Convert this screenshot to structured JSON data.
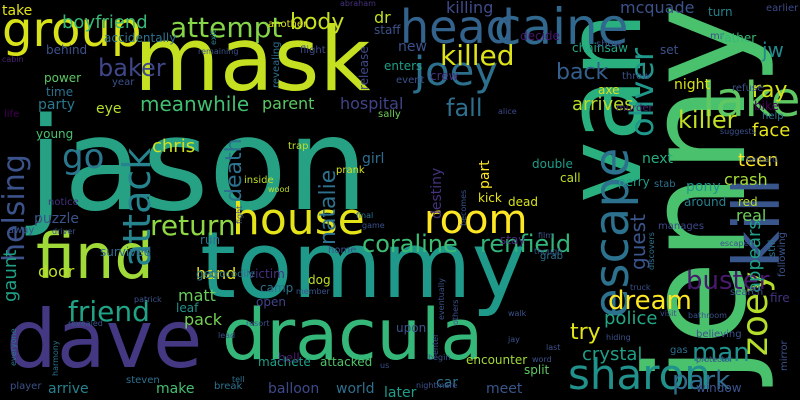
{
  "background": "#000000",
  "words": [
    {
      "text": "jason",
      "color": "#26a184"
    },
    {
      "text": "tommy",
      "color": "#1f9a8a"
    },
    {
      "text": "jenny",
      "color": "#4ac16d"
    },
    {
      "text": "van",
      "color": "#2ab07f"
    },
    {
      "text": "mask",
      "color": "#c5e021"
    },
    {
      "text": "dave",
      "color": "#453882"
    },
    {
      "text": "dracula",
      "color": "#35b779"
    },
    {
      "text": "find",
      "color": "#a0da39"
    },
    {
      "text": "kill",
      "color": "#39568c"
    },
    {
      "text": "group",
      "color": "#d8e219"
    },
    {
      "text": "escape",
      "color": "#2c728e"
    },
    {
      "text": "caine",
      "color": "#31688e"
    },
    {
      "text": "head",
      "color": "#33638d"
    },
    {
      "text": "lake",
      "color": "#5ec962"
    },
    {
      "text": "house",
      "color": "#e5e419"
    },
    {
      "text": "sharon",
      "color": "#21918c"
    },
    {
      "text": "joey",
      "color": "#2d708e"
    },
    {
      "text": "room",
      "color": "#fde725"
    },
    {
      "text": "attack",
      "color": "#25848e"
    },
    {
      "text": "helsing",
      "color": "#3b528b"
    },
    {
      "text": "zoey",
      "color": "#b5de2b"
    },
    {
      "text": "oliver",
      "color": "#1f988b"
    },
    {
      "text": "go",
      "color": "#2a788e"
    },
    {
      "text": "killed",
      "color": "#dde318"
    },
    {
      "text": "attempt",
      "color": "#86d549"
    },
    {
      "text": "return",
      "color": "#8fd744"
    },
    {
      "text": "friend",
      "color": "#20a386"
    },
    {
      "text": "baker",
      "color": "#3f4788"
    },
    {
      "text": "dream",
      "color": "#fde725"
    },
    {
      "text": "park",
      "color": "#2e6e8e"
    },
    {
      "text": "man",
      "color": "#21918c"
    },
    {
      "text": "renfield",
      "color": "#31b57b"
    },
    {
      "text": "coraline",
      "color": "#3dbc74"
    },
    {
      "text": "killer",
      "color": "#c0df25"
    },
    {
      "text": "ray",
      "color": "#d2e21b"
    },
    {
      "text": "jw",
      "color": "#23898e"
    },
    {
      "text": "buster",
      "color": "#481a6c"
    },
    {
      "text": "death",
      "color": "#2c718e"
    },
    {
      "text": "natalie",
      "color": "#2d718e"
    },
    {
      "text": "guest",
      "color": "#3a548c"
    },
    {
      "text": "back",
      "color": "#355f8d"
    },
    {
      "text": "fall",
      "color": "#2e6f8e"
    },
    {
      "text": "meanwhile",
      "color": "#42be71"
    },
    {
      "text": "body",
      "color": "#c8e020"
    },
    {
      "text": "try",
      "color": "#e2e418"
    },
    {
      "text": "gaunt",
      "color": "#1fa187"
    },
    {
      "text": "crystal",
      "color": "#1f9f88"
    },
    {
      "text": "police",
      "color": "#22a785"
    },
    {
      "text": "appears",
      "color": "#1fa088"
    },
    {
      "text": "arrives",
      "color": "#b8de29"
    },
    {
      "text": "boyfriend",
      "color": "#37b878"
    },
    {
      "text": "hospital",
      "color": "#414287"
    },
    {
      "text": "chris",
      "color": "#d0e11c"
    },
    {
      "text": "parent",
      "color": "#5cc863"
    },
    {
      "text": "face",
      "color": "#e5e419"
    },
    {
      "text": "teen",
      "color": "#fde725"
    },
    {
      "text": "crash",
      "color": "#a5db36"
    },
    {
      "text": "pack",
      "color": "#75d054"
    },
    {
      "text": "matt",
      "color": "#69cd5b"
    },
    {
      "text": "hand",
      "color": "#e7e419"
    },
    {
      "text": "door",
      "color": "#bddf26"
    },
    {
      "text": "real",
      "color": "#6ece58"
    },
    {
      "text": "mcquade",
      "color": "#3b528b"
    },
    {
      "text": "killing",
      "color": "#3e4c8a"
    },
    {
      "text": "take",
      "color": "#e5e419"
    },
    {
      "text": "night",
      "color": "#d8e219"
    },
    {
      "text": "next",
      "color": "#27ad81"
    },
    {
      "text": "pony",
      "color": "#1f968b"
    },
    {
      "text": "girl",
      "color": "#2e6d8e"
    },
    {
      "text": "puzzle",
      "color": "#3b528b"
    },
    {
      "text": "party",
      "color": "#2a788e"
    },
    {
      "text": "dr",
      "color": "#c2df23"
    },
    {
      "text": "new",
      "color": "#3b518b"
    },
    {
      "text": "balloon",
      "color": "#3e4989"
    },
    {
      "text": "meet",
      "color": "#39558c"
    },
    {
      "text": "arrive",
      "color": "#26828e"
    },
    {
      "text": "make",
      "color": "#44bf70"
    },
    {
      "text": "later",
      "color": "#1e9c89"
    },
    {
      "text": "world",
      "color": "#2e6f8e"
    },
    {
      "text": "car",
      "color": "#2c738e"
    },
    {
      "text": "part",
      "color": "#fde725"
    },
    {
      "text": "destiny",
      "color": "#46327e"
    },
    {
      "text": "machete",
      "color": "#1fa088"
    },
    {
      "text": "attacked",
      "color": "#50c46a"
    },
    {
      "text": "encounter",
      "color": "#a2da37"
    },
    {
      "text": "split",
      "color": "#5ec962"
    },
    {
      "text": "upon",
      "color": "#3b528b"
    },
    {
      "text": "bike",
      "color": "#440154"
    },
    {
      "text": "fire",
      "color": "#46327e"
    },
    {
      "text": "red",
      "color": "#b8de29"
    },
    {
      "text": "around",
      "color": "#27808e"
    },
    {
      "text": "survived",
      "color": "#2f6c8e"
    },
    {
      "text": "victim",
      "color": "#46307e"
    },
    {
      "text": "camp",
      "color": "#2d718e"
    },
    {
      "text": "get",
      "color": "#2a788e"
    },
    {
      "text": "run",
      "color": "#2d708e"
    },
    {
      "text": "leaf",
      "color": "#21918c"
    },
    {
      "text": "open",
      "color": "#414487"
    },
    {
      "text": "dog",
      "color": "#c2df23"
    },
    {
      "text": "kick",
      "color": "#e5e419"
    },
    {
      "text": "dead",
      "color": "#d8e219"
    },
    {
      "text": "stay",
      "color": "#482878"
    },
    {
      "text": "call",
      "color": "#c2df23"
    },
    {
      "text": "perry",
      "color": "#1f9e89"
    },
    {
      "text": "double",
      "color": "#1f9e89"
    },
    {
      "text": "chainsaw",
      "color": "#22a785"
    },
    {
      "text": "decide",
      "color": "#481769"
    },
    {
      "text": "staff",
      "color": "#3b528b"
    },
    {
      "text": "release",
      "color": "#3e4a89"
    },
    {
      "text": "revealing",
      "color": "#2e6e8e"
    },
    {
      "text": "another",
      "color": "#dde318"
    },
    {
      "text": "flight",
      "color": "#3e4a89"
    },
    {
      "text": "crew",
      "color": "#46327e"
    },
    {
      "text": "enters",
      "color": "#1f9e89"
    },
    {
      "text": "event",
      "color": "#3b528b"
    },
    {
      "text": "hell",
      "color": "#481b6d"
    },
    {
      "text": "murder",
      "color": "#482576"
    },
    {
      "text": "axe",
      "color": "#d8e219"
    },
    {
      "text": "mr",
      "color": "#3b528b"
    },
    {
      "text": "father",
      "color": "#37b878"
    },
    {
      "text": "set",
      "color": "#3b528b"
    },
    {
      "text": "earlier",
      "color": "#3e4989"
    },
    {
      "text": "turn",
      "color": "#26828e"
    },
    {
      "text": "show",
      "color": "#3b528b"
    },
    {
      "text": "accidentally",
      "color": "#2c728e"
    },
    {
      "text": "behind",
      "color": "#3b528b"
    },
    {
      "text": "power",
      "color": "#5cc863"
    },
    {
      "text": "time",
      "color": "#2c728e"
    },
    {
      "text": "young",
      "color": "#4ac16d"
    },
    {
      "text": "life",
      "color": "#440154"
    },
    {
      "text": "year",
      "color": "#3b528b"
    },
    {
      "text": "eye",
      "color": "#b5de2b"
    },
    {
      "text": "cabin",
      "color": "#482475"
    },
    {
      "text": "exit",
      "color": "#26828e"
    },
    {
      "text": "remaining",
      "color": "#3b528b"
    },
    {
      "text": "abraham",
      "color": "#46327e"
    },
    {
      "text": "help",
      "color": "#2c728e"
    },
    {
      "text": "refuse",
      "color": "#3b528b"
    },
    {
      "text": "throw",
      "color": "#3b528b"
    },
    {
      "text": "sally",
      "color": "#6ece58"
    },
    {
      "text": "alice",
      "color": "#3e4989"
    },
    {
      "text": "trap",
      "color": "#bddf26"
    },
    {
      "text": "prank",
      "color": "#d8e219"
    },
    {
      "text": "inside",
      "color": "#c2df23"
    },
    {
      "text": "wood",
      "color": "#bddf26"
    },
    {
      "text": "suggests",
      "color": "#3b528b"
    },
    {
      "text": "bernard",
      "color": "#3b528b"
    },
    {
      "text": "stab",
      "color": "#2c728e"
    },
    {
      "text": "manages",
      "color": "#3e4989"
    },
    {
      "text": "discovers",
      "color": "#2c728e"
    },
    {
      "text": "escaped",
      "color": "#3b528b"
    },
    {
      "text": "still",
      "color": "#2c728e"
    },
    {
      "text": "following",
      "color": "#3b528b"
    },
    {
      "text": "search",
      "color": "#3b528b"
    },
    {
      "text": "truck",
      "color": "#3b528b"
    },
    {
      "text": "visit",
      "color": "#3b528b"
    },
    {
      "text": "bathroom",
      "color": "#3b528b"
    },
    {
      "text": "believing",
      "color": "#3b528b"
    },
    {
      "text": "protector",
      "color": "#3b528b"
    },
    {
      "text": "gas",
      "color": "#2c728e"
    },
    {
      "text": "mirror",
      "color": "#3b528b"
    },
    {
      "text": "window",
      "color": "#3b528b"
    },
    {
      "text": "notice",
      "color": "#46327e"
    },
    {
      "text": "away",
      "color": "#3b528b"
    },
    {
      "text": "driver",
      "color": "#3b528b"
    },
    {
      "text": "everyone",
      "color": "#2c728e"
    },
    {
      "text": "harmony",
      "color": "#2c728e"
    },
    {
      "text": "patrick",
      "color": "#3b528b"
    },
    {
      "text": "revealed",
      "color": "#3b528b"
    },
    {
      "text": "tell",
      "color": "#2c728e"
    },
    {
      "text": "player",
      "color": "#3b528b"
    },
    {
      "text": "steven",
      "color": "#2c728e"
    },
    {
      "text": "break",
      "color": "#2c728e"
    },
    {
      "text": "crocodile",
      "color": "#2c728e"
    },
    {
      "text": "lead",
      "color": "#3b528b"
    },
    {
      "text": "resort",
      "color": "#3b528b"
    },
    {
      "text": "member",
      "color": "#3b528b"
    },
    {
      "text": "us",
      "color": "#3b528b"
    },
    {
      "text": "home",
      "color": "#3b528b"
    },
    {
      "text": "final",
      "color": "#2c728e"
    },
    {
      "text": "game",
      "color": "#3b528b"
    },
    {
      "text": "film",
      "color": "#3b528b"
    },
    {
      "text": "though",
      "color": "#3b528b"
    },
    {
      "text": "grab",
      "color": "#2c728e"
    },
    {
      "text": "walk",
      "color": "#3b528b"
    },
    {
      "text": "hiding",
      "color": "#3b528b"
    },
    {
      "text": "last",
      "color": "#3b528b"
    },
    {
      "text": "jay",
      "color": "#3b528b"
    },
    {
      "text": "word",
      "color": "#3b528b"
    },
    {
      "text": "begin",
      "color": "#3b528b"
    },
    {
      "text": "enter",
      "color": "#3b528b"
    },
    {
      "text": "nightmare",
      "color": "#3b528b"
    },
    {
      "text": "others",
      "color": "#3b528b"
    },
    {
      "text": "eventually",
      "color": "#3b528b"
    },
    {
      "text": "fight",
      "color": "#3b528b"
    },
    {
      "text": "becomes",
      "color": "#3b528b"
    }
  ]
}
